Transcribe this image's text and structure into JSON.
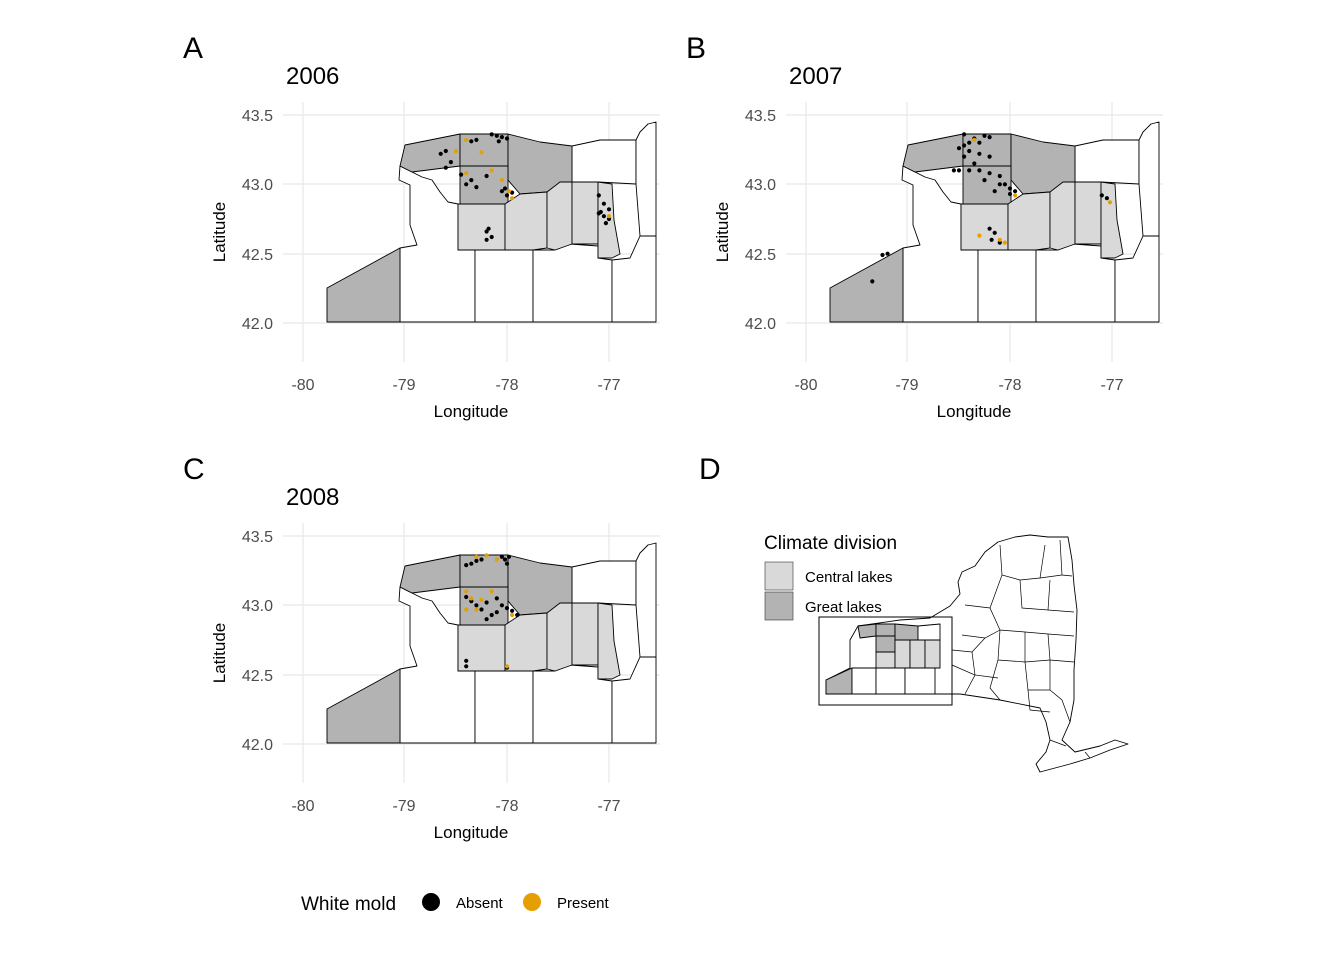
{
  "colors": {
    "great_lakes": "#b3b3b3",
    "central_lakes": "#d9d9d9",
    "other": "#ffffff",
    "absent": "#000000",
    "present": "#e69f00"
  },
  "panels": [
    {
      "tag": "A",
      "title": "2006",
      "xlabel": "Longitude",
      "ylabel": "Latitude"
    },
    {
      "tag": "B",
      "title": "2007",
      "xlabel": "Longitude",
      "ylabel": "Latitude"
    },
    {
      "tag": "C",
      "title": "2008",
      "xlabel": "Longitude",
      "ylabel": "Latitude"
    }
  ],
  "axes": {
    "x_ticks": [
      -80,
      -79,
      -78,
      -77
    ],
    "x_tick_labels": [
      "-80",
      "-79",
      "-78",
      "-77"
    ],
    "y_ticks": [
      42.0,
      42.5,
      43.0,
      43.5
    ],
    "y_tick_labels": [
      "42.0",
      "42.5",
      "43.0",
      "43.5"
    ],
    "xlim": [
      -80.15,
      -76.5
    ],
    "ylim": [
      41.7,
      43.6
    ]
  },
  "panel_d": {
    "tag": "D",
    "legend_title": "Climate division",
    "legend_items": [
      "Central lakes",
      "Great lakes"
    ]
  },
  "bottom_legend": {
    "title": "White mold",
    "items": [
      "Absent",
      "Present"
    ]
  },
  "chart_data": {
    "type": "scatter",
    "x_axis": "Longitude",
    "y_axis": "Latitude",
    "series_names": [
      "Absent",
      "Present"
    ],
    "series_2006": {
      "absent": [
        [
          -78.1,
          43.35
        ],
        [
          -78.05,
          43.34
        ],
        [
          -78.0,
          43.33
        ],
        [
          -78.15,
          43.36
        ],
        [
          -78.08,
          43.31
        ],
        [
          -78.3,
          43.32
        ],
        [
          -78.35,
          43.31
        ],
        [
          -78.6,
          43.24
        ],
        [
          -78.65,
          43.22
        ],
        [
          -78.55,
          43.16
        ],
        [
          -78.6,
          43.12
        ],
        [
          -78.45,
          43.07
        ],
        [
          -78.35,
          43.03
        ],
        [
          -78.3,
          42.98
        ],
        [
          -78.4,
          43.0
        ],
        [
          -78.2,
          43.06
        ],
        [
          -78.05,
          42.95
        ],
        [
          -78.0,
          42.92
        ],
        [
          -77.95,
          42.94
        ],
        [
          -78.02,
          42.97
        ],
        [
          -78.2,
          42.66
        ],
        [
          -78.15,
          42.62
        ],
        [
          -78.2,
          42.6
        ],
        [
          -78.18,
          42.68
        ],
        [
          -77.1,
          42.92
        ],
        [
          -77.05,
          42.86
        ],
        [
          -77.1,
          42.79
        ],
        [
          -77.05,
          42.77
        ],
        [
          -77.0,
          42.75
        ],
        [
          -77.03,
          42.72
        ],
        [
          -77.08,
          42.8
        ],
        [
          -77.0,
          42.82
        ]
      ],
      "present": [
        [
          -78.4,
          43.32
        ],
        [
          -78.5,
          43.24
        ],
        [
          -78.25,
          43.23
        ],
        [
          -78.15,
          43.1
        ],
        [
          -78.4,
          43.08
        ],
        [
          -78.05,
          43.03
        ],
        [
          -77.98,
          42.95
        ],
        [
          -77.95,
          42.9
        ],
        [
          -77.0,
          42.77
        ]
      ]
    },
    "series_2007": {
      "absent": [
        [
          -78.45,
          43.36
        ],
        [
          -78.35,
          43.33
        ],
        [
          -78.25,
          43.35
        ],
        [
          -78.2,
          43.34
        ],
        [
          -78.3,
          43.3
        ],
        [
          -78.4,
          43.3
        ],
        [
          -78.45,
          43.28
        ],
        [
          -78.5,
          43.26
        ],
        [
          -78.4,
          43.24
        ],
        [
          -78.3,
          43.22
        ],
        [
          -78.45,
          43.2
        ],
        [
          -78.2,
          43.2
        ],
        [
          -78.35,
          43.15
        ],
        [
          -78.55,
          43.1
        ],
        [
          -78.5,
          43.1
        ],
        [
          -78.4,
          43.1
        ],
        [
          -78.3,
          43.1
        ],
        [
          -78.2,
          43.08
        ],
        [
          -78.1,
          43.06
        ],
        [
          -78.05,
          43.0
        ],
        [
          -78.0,
          42.97
        ],
        [
          -77.95,
          42.95
        ],
        [
          -78.0,
          42.93
        ],
        [
          -78.1,
          43.0
        ],
        [
          -78.25,
          43.03
        ],
        [
          -78.15,
          42.95
        ],
        [
          -78.2,
          42.68
        ],
        [
          -78.15,
          42.65
        ],
        [
          -78.18,
          42.6
        ],
        [
          -78.1,
          42.58
        ],
        [
          -77.1,
          42.92
        ],
        [
          -77.05,
          42.9
        ],
        [
          -79.2,
          42.5
        ],
        [
          -79.25,
          42.49
        ],
        [
          -79.35,
          42.3
        ]
      ],
      "present": [
        [
          -78.35,
          43.32
        ],
        [
          -78.3,
          42.63
        ],
        [
          -78.1,
          42.6
        ],
        [
          -78.05,
          42.58
        ],
        [
          -77.95,
          42.92
        ],
        [
          -77.02,
          42.87
        ]
      ]
    },
    "series_2008": {
      "absent": [
        [
          -78.35,
          43.3
        ],
        [
          -78.3,
          43.32
        ],
        [
          -78.25,
          43.33
        ],
        [
          -78.4,
          43.29
        ],
        [
          -78.05,
          43.35
        ],
        [
          -77.98,
          43.35
        ],
        [
          -78.02,
          43.33
        ],
        [
          -78.0,
          43.3
        ],
        [
          -78.4,
          43.06
        ],
        [
          -78.35,
          43.03
        ],
        [
          -78.3,
          43.0
        ],
        [
          -78.25,
          42.97
        ],
        [
          -78.2,
          43.02
        ],
        [
          -78.1,
          43.05
        ],
        [
          -78.05,
          43.0
        ],
        [
          -78.0,
          42.98
        ],
        [
          -77.95,
          42.96
        ],
        [
          -78.1,
          42.95
        ],
        [
          -78.15,
          42.93
        ],
        [
          -78.2,
          42.9
        ],
        [
          -77.9,
          42.93
        ],
        [
          -78.4,
          42.6
        ],
        [
          -78.4,
          42.56
        ],
        [
          -78.0,
          42.55
        ]
      ],
      "present": [
        [
          -78.4,
          43.1
        ],
        [
          -78.35,
          43.05
        ],
        [
          -78.25,
          43.04
        ],
        [
          -78.3,
          43.35
        ],
        [
          -78.2,
          43.36
        ],
        [
          -78.1,
          43.33
        ],
        [
          -78.15,
          43.1
        ],
        [
          -78.3,
          42.97
        ],
        [
          -77.95,
          42.93
        ],
        [
          -78.4,
          42.97
        ],
        [
          -78.0,
          42.56
        ]
      ]
    }
  }
}
